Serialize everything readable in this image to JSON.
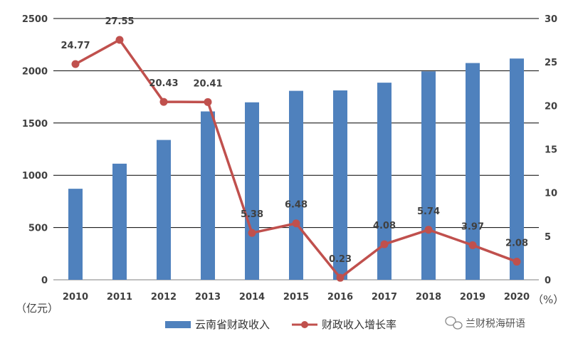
{
  "chart_data": {
    "type": "bar+line",
    "categories": [
      "2010",
      "2011",
      "2012",
      "2013",
      "2014",
      "2015",
      "2016",
      "2017",
      "2018",
      "2019",
      "2020"
    ],
    "series": [
      {
        "name": "云南省财政收入",
        "type": "bar",
        "axis": "left",
        "values": [
          871,
          1111,
          1338,
          1611,
          1698,
          1808,
          1812,
          1886,
          1994,
          2074,
          2117
        ],
        "color": "#4f81bd"
      },
      {
        "name": "财政收入增长率",
        "type": "line",
        "axis": "right",
        "values": [
          24.77,
          27.55,
          20.43,
          20.41,
          5.38,
          6.48,
          0.23,
          4.08,
          5.74,
          3.97,
          2.08
        ],
        "labels": [
          "24.77",
          "27.55",
          "20.43",
          "20.41",
          "5.38",
          "6.48",
          "0.23",
          "4.08",
          "5.74",
          "3.97",
          "2.08"
        ],
        "color": "#c0504d"
      }
    ],
    "y_left": {
      "min": 0,
      "max": 2500,
      "ticks": [
        "0",
        "500",
        "1000",
        "1500",
        "2000",
        "2500"
      ],
      "unit": "（亿元）"
    },
    "y_right": {
      "min": 0,
      "max": 30,
      "ticks": [
        "0",
        "5",
        "10",
        "15",
        "20",
        "25",
        "30"
      ],
      "unit": "（%）"
    },
    "grid": true,
    "legend_position": "bottom"
  },
  "watermark": {
    "text": "兰财税海研语",
    "icon": "wechat-icon"
  }
}
